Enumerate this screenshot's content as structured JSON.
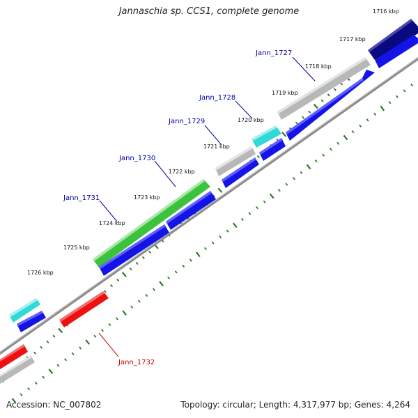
{
  "title": "Jannaschia sp. CCS1, complete genome",
  "footer": {
    "accession": "Accession: NC_007802",
    "summary": "Topology: circular; Length: 4,317,977 bp; Genes: 4,264"
  },
  "ticks": [
    {
      "label": "1716 kbp"
    },
    {
      "label": "1717 kbp"
    },
    {
      "label": "1718 kbp"
    },
    {
      "label": "1719 kbp"
    },
    {
      "label": "1720 kbp"
    },
    {
      "label": "1721 kbp"
    },
    {
      "label": "1722 kbp"
    },
    {
      "label": "1723 kbp"
    },
    {
      "label": "1724 kbp"
    },
    {
      "label": "1725 kbp"
    },
    {
      "label": "1726 kbp"
    }
  ],
  "gene_labels": [
    {
      "text": "Jann_1727",
      "color": "#0000aa"
    },
    {
      "text": "Jann_1728",
      "color": "#0000aa"
    },
    {
      "text": "Jann_1729",
      "color": "#0000aa"
    },
    {
      "text": "Jann_1730",
      "color": "#0000aa"
    },
    {
      "text": "Jann_1731",
      "color": "#0000aa"
    },
    {
      "text": "Jann_1732",
      "color": "#cc0000"
    }
  ],
  "colors": {
    "backbone": "#888888",
    "tick": "#2a7a2a",
    "gene_blue": "#1414e6",
    "gene_gray": "#b8b8b8",
    "gene_green": "#3cc23c",
    "gene_cyan": "#30d8d8",
    "gene_red": "#ee1111",
    "gene_navy": "#0a0a80"
  }
}
